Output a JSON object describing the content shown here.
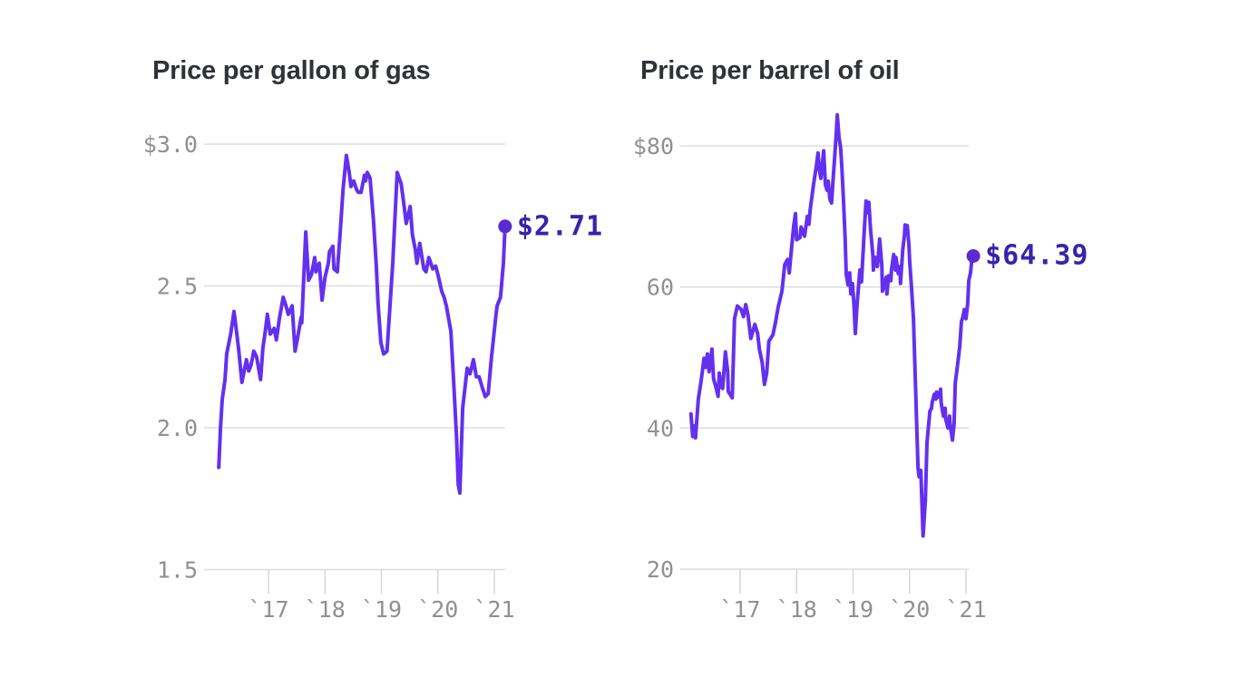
{
  "page": {
    "background": "#ffffff"
  },
  "style": {
    "line_color": "#6330f0",
    "dot_color": "#5a2ad2",
    "end_label_color": "#3a21ae",
    "axis_label_color": "#8f9094",
    "grid_color": "#dedede",
    "tick_color": "#d6d6d6",
    "title_color": "#2f3237"
  },
  "chart_data": [
    {
      "type": "line",
      "title": "Price per gallon of gas",
      "end_label": "$2.71",
      "end_value": 2.71,
      "ylim": [
        1.5,
        3.0
      ],
      "yticks": [
        3.0,
        2.5,
        2.0,
        1.5
      ],
      "ytick_labels": [
        "$3.0",
        "2.5",
        "2.0",
        "1.5"
      ],
      "xticks": [
        2017,
        2018,
        2019,
        2020,
        2021
      ],
      "xtick_labels": [
        "`17",
        "`18",
        "`19",
        "`20",
        "`21"
      ],
      "grid": "horizontal",
      "legend": "none",
      "x": [
        2016.12,
        2016.15,
        2016.18,
        2016.23,
        2016.26,
        2016.33,
        2016.39,
        2016.44,
        2016.47,
        2016.53,
        2016.57,
        2016.61,
        2016.65,
        2016.69,
        2016.74,
        2016.79,
        2016.86,
        2016.9,
        2016.95,
        2016.98,
        2017.03,
        2017.1,
        2017.14,
        2017.19,
        2017.26,
        2017.31,
        2017.35,
        2017.42,
        2017.47,
        2017.51,
        2017.58,
        2017.59,
        2017.66,
        2017.71,
        2017.76,
        2017.82,
        2017.84,
        2017.9,
        2017.95,
        2018.0,
        2018.06,
        2018.08,
        2018.14,
        2018.16,
        2018.22,
        2018.27,
        2018.32,
        2018.38,
        2018.43,
        2018.46,
        2018.51,
        2018.56,
        2018.59,
        2018.64,
        2018.7,
        2018.72,
        2018.75,
        2018.8,
        2018.86,
        2018.91,
        2018.94,
        2018.99,
        2019.04,
        2019.1,
        2019.2,
        2019.28,
        2019.35,
        2019.39,
        2019.44,
        2019.51,
        2019.55,
        2019.6,
        2019.63,
        2019.68,
        2019.75,
        2019.79,
        2019.84,
        2019.91,
        2019.96,
        2020.0,
        2020.07,
        2020.11,
        2020.15,
        2020.23,
        2020.28,
        2020.33,
        2020.36,
        2020.39,
        2020.44,
        2020.52,
        2020.57,
        2020.63,
        2020.68,
        2020.73,
        2020.79,
        2020.84,
        2020.89,
        2020.95,
        2021.03,
        2021.05,
        2021.11,
        2021.16,
        2021.19
      ],
      "y": [
        1.86,
        2.0,
        2.1,
        2.17,
        2.26,
        2.33,
        2.41,
        2.33,
        2.28,
        2.16,
        2.2,
        2.24,
        2.2,
        2.22,
        2.27,
        2.25,
        2.17,
        2.28,
        2.35,
        2.4,
        2.33,
        2.35,
        2.31,
        2.38,
        2.46,
        2.43,
        2.4,
        2.43,
        2.27,
        2.31,
        2.39,
        2.37,
        2.69,
        2.52,
        2.54,
        2.6,
        2.55,
        2.58,
        2.45,
        2.53,
        2.58,
        2.62,
        2.64,
        2.56,
        2.55,
        2.69,
        2.84,
        2.96,
        2.9,
        2.85,
        2.87,
        2.84,
        2.83,
        2.83,
        2.89,
        2.87,
        2.9,
        2.88,
        2.73,
        2.57,
        2.44,
        2.3,
        2.26,
        2.27,
        2.58,
        2.9,
        2.86,
        2.8,
        2.72,
        2.78,
        2.68,
        2.63,
        2.58,
        2.65,
        2.56,
        2.55,
        2.6,
        2.56,
        2.57,
        2.54,
        2.48,
        2.46,
        2.43,
        2.34,
        2.16,
        1.97,
        1.8,
        1.77,
        2.07,
        2.21,
        2.19,
        2.24,
        2.18,
        2.18,
        2.14,
        2.11,
        2.12,
        2.25,
        2.4,
        2.43,
        2.46,
        2.58,
        2.71
      ]
    },
    {
      "type": "line",
      "title": "Price per barrel of oil",
      "end_label": "$64.39",
      "end_value": 64.39,
      "ylim": [
        20,
        80
      ],
      "yticks": [
        80,
        60,
        40,
        20
      ],
      "ytick_labels": [
        "$80",
        "60",
        "40",
        "20"
      ],
      "xticks": [
        2017,
        2018,
        2019,
        2020,
        2021
      ],
      "xtick_labels": [
        "`17",
        "`18",
        "`19",
        "`20",
        "`21"
      ],
      "grid": "horizontal",
      "legend": "none",
      "x": [
        2016.13,
        2016.16,
        2016.18,
        2016.21,
        2016.26,
        2016.31,
        2016.36,
        2016.39,
        2016.42,
        2016.45,
        2016.5,
        2016.53,
        2016.58,
        2016.61,
        2016.63,
        2016.66,
        2016.69,
        2016.74,
        2016.78,
        2016.79,
        2016.86,
        2016.9,
        2016.95,
        2017.02,
        2017.06,
        2017.1,
        2017.14,
        2017.19,
        2017.26,
        2017.31,
        2017.34,
        2017.39,
        2017.43,
        2017.47,
        2017.51,
        2017.58,
        2017.63,
        2017.67,
        2017.74,
        2017.79,
        2017.84,
        2017.87,
        2017.9,
        2017.95,
        2017.98,
        2018.0,
        2018.06,
        2018.08,
        2018.14,
        2018.19,
        2018.22,
        2018.24,
        2018.3,
        2018.35,
        2018.38,
        2018.4,
        2018.43,
        2018.46,
        2018.48,
        2018.51,
        2018.54,
        2018.56,
        2018.59,
        2018.62,
        2018.64,
        2018.67,
        2018.7,
        2018.72,
        2018.75,
        2018.78,
        2018.8,
        2018.83,
        2018.86,
        2018.88,
        2018.91,
        2018.94,
        2018.96,
        2018.99,
        2019.02,
        2019.04,
        2019.07,
        2019.12,
        2019.15,
        2019.2,
        2019.23,
        2019.27,
        2019.28,
        2019.31,
        2019.35,
        2019.36,
        2019.39,
        2019.43,
        2019.44,
        2019.47,
        2019.51,
        2019.52,
        2019.55,
        2019.59,
        2019.6,
        2019.63,
        2019.67,
        2019.68,
        2019.72,
        2019.75,
        2019.76,
        2019.8,
        2019.83,
        2019.84,
        2019.88,
        2019.91,
        2019.92,
        2019.96,
        2019.99,
        2020.0,
        2020.04,
        2020.07,
        2020.15,
        2020.17,
        2020.2,
        2020.24,
        2020.28,
        2020.31,
        2020.36,
        2020.39,
        2020.4,
        2020.44,
        2020.47,
        2020.48,
        2020.52,
        2020.55,
        2020.56,
        2020.6,
        2020.63,
        2020.64,
        2020.68,
        2020.71,
        2020.72,
        2020.76,
        2020.79,
        2020.81,
        2020.84,
        2020.87,
        2020.89,
        2020.92,
        2020.95,
        2020.97,
        2021.0,
        2021.03,
        2021.05,
        2021.08,
        2021.11,
        2021.13
      ],
      "y": [
        42.0,
        38.8,
        40.3,
        38.6,
        44.1,
        46.7,
        49.9,
        48.6,
        50.5,
        48.0,
        51.2,
        47.0,
        45.5,
        44.5,
        47.8,
        46.0,
        45.6,
        50.8,
        48.0,
        45.2,
        44.3,
        55.5,
        57.3,
        56.8,
        55.8,
        57.5,
        56.0,
        52.7,
        54.7,
        53.4,
        51.2,
        49.3,
        46.2,
        47.8,
        52.3,
        53.2,
        55.1,
        57.0,
        59.4,
        63.2,
        63.9,
        62.0,
        64.6,
        68.7,
        70.4,
        66.7,
        67.0,
        68.5,
        67.2,
        70.0,
        68.9,
        70.9,
        74.5,
        77.1,
        79.0,
        76.7,
        75.4,
        77.8,
        79.3,
        74.5,
        73.7,
        75.0,
        72.4,
        71.9,
        74.5,
        78.0,
        81.4,
        84.4,
        81.4,
        79.7,
        77.3,
        72.4,
        66.8,
        61.8,
        60.3,
        62.0,
        59.0,
        60.5,
        57.0,
        53.4,
        57.5,
        62.4,
        60.7,
        68.3,
        72.2,
        70.5,
        72.0,
        68.1,
        64.6,
        62.4,
        64.2,
        62.9,
        63.7,
        66.8,
        63.1,
        59.4,
        60.3,
        61.4,
        59.0,
        61.6,
        60.9,
        62.4,
        64.6,
        62.4,
        64.2,
        61.9,
        62.9,
        60.5,
        65.3,
        67.2,
        68.8,
        68.7,
        66.0,
        63.9,
        59.4,
        55.5,
        34.4,
        33.1,
        34.0,
        24.7,
        29.7,
        37.9,
        42.4,
        42.8,
        43.6,
        44.8,
        44.1,
        45.1,
        44.4,
        45.5,
        43.6,
        41.7,
        42.8,
        41.3,
        40.0,
        41.7,
        40.4,
        38.3,
        40.6,
        46.4,
        48.2,
        50.2,
        51.7,
        55.1,
        55.9,
        56.8,
        55.5,
        57.7,
        60.9,
        62.0,
        64.2,
        64.39
      ]
    }
  ]
}
